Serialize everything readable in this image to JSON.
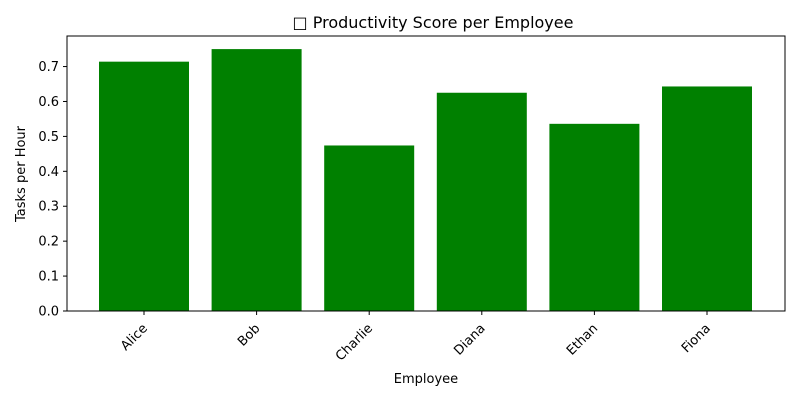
{
  "chart_data": {
    "type": "bar",
    "title": "□ Productivity Score per Employee",
    "xlabel": "Employee",
    "ylabel": "Tasks per Hour",
    "categories": [
      "Alice",
      "Bob",
      "Charlie",
      "Diana",
      "Ethan",
      "Fiona"
    ],
    "values": [
      0.714,
      0.75,
      0.474,
      0.625,
      0.536,
      0.643
    ],
    "ylim": [
      0,
      0.7875
    ],
    "yticks": [
      "0.0",
      "0.1",
      "0.2",
      "0.3",
      "0.4",
      "0.5",
      "0.6",
      "0.7"
    ],
    "bar_color": "#008000",
    "grid": false,
    "legend": "none"
  }
}
